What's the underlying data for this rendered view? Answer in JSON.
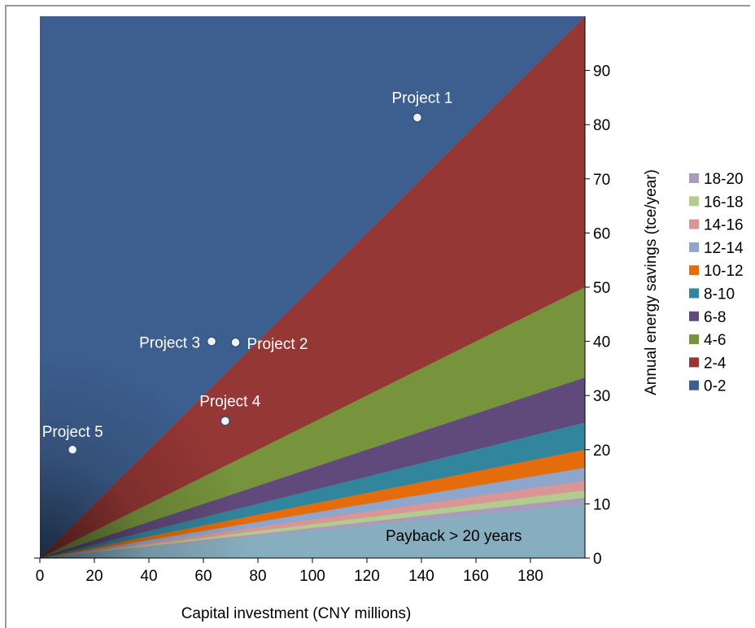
{
  "chart_data": {
    "type": "area",
    "title": "",
    "xlabel": "Capital investment (CNY millions)",
    "ylabel": "Annual energy savings (tce/year)",
    "xlim": [
      0,
      200
    ],
    "ylim": [
      0,
      100
    ],
    "x_ticks": [
      "0",
      "20",
      "40",
      "60",
      "80",
      "100",
      "120",
      "140",
      "160",
      "180"
    ],
    "y_ticks": [
      "0",
      "10",
      "20",
      "30",
      "40",
      "50",
      "60",
      "70",
      "80",
      "90"
    ],
    "grid": false,
    "y_axis_side": "right",
    "legend_position": "right",
    "legend_title": "",
    "bands": [
      {
        "name": "0-2",
        "color": "#3d5f8f"
      },
      {
        "name": "2-4",
        "color": "#953735"
      },
      {
        "name": "4-6",
        "color": "#77933c"
      },
      {
        "name": "6-8",
        "color": "#604a7b"
      },
      {
        "name": "8-10",
        "color": "#31859c"
      },
      {
        "name": "10-12",
        "color": "#e46c0a"
      },
      {
        "name": "12-14",
        "color": "#8ea5cc"
      },
      {
        "name": "14-16",
        "color": "#d99694"
      },
      {
        "name": "16-18",
        "color": "#b3cc8e"
      },
      {
        "name": "18-20",
        "color": "#a99bbd"
      }
    ],
    "note": "Payback > 20 years",
    "note_background": "#86aebf",
    "points": [
      {
        "name": "Project 1",
        "x": 138.5,
        "y": 81.3
      },
      {
        "name": "Project 2",
        "x": 71.8,
        "y": 39.8
      },
      {
        "name": "Project 3",
        "x": 63.0,
        "y": 40.0
      },
      {
        "name": "Project 4",
        "x": 68.0,
        "y": 25.3
      },
      {
        "name": "Project 5",
        "x": 12.0,
        "y": 20.0
      }
    ]
  }
}
